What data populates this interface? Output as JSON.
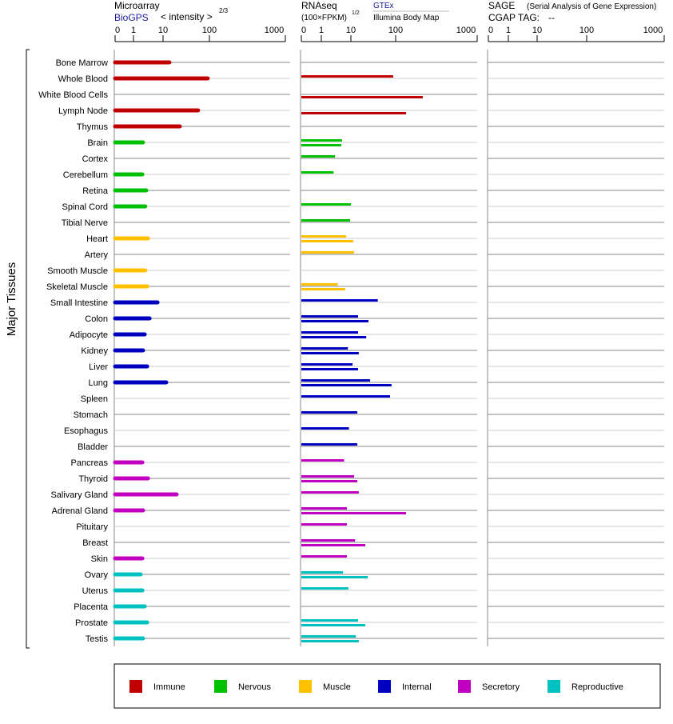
{
  "chart_data": {
    "type": "bar",
    "y_axis_label": "Major Tissues",
    "panels": [
      {
        "title": "Microarray",
        "source": "BioGPS",
        "scale_label": "< intensity >",
        "scale_exponent": "2/3",
        "ticks": [
          "0",
          "1",
          "10",
          "100",
          "1000"
        ]
      },
      {
        "title": "RNAseq",
        "scale_label": "(100×FPKM)",
        "scale_exponent": "1/2",
        "source_upper": "GTEx",
        "source_lower": "Illumina Body Map",
        "ticks": [
          "0",
          "1",
          "10",
          "100",
          "1000"
        ]
      },
      {
        "title": "SAGE",
        "subtitle": "(Serial Analysis of Gene Expression)",
        "tag_label": "CGAP TAG:",
        "tag_value": "--",
        "ticks": [
          "0",
          "1",
          "10",
          "100",
          "1000"
        ]
      }
    ],
    "categories": [
      "Immune",
      "Nervous",
      "Muscle",
      "Internal",
      "Secretory",
      "Reproductive"
    ],
    "category_colors": {
      "Immune": "#c00000",
      "Nervous": "#00c000",
      "Muscle": "#ffc000",
      "Internal": "#0000c0",
      "Secretory": "#c000c0",
      "Reproductive": "#00c0c0"
    },
    "tissues": [
      {
        "name": "Bone Marrow",
        "cat": "Immune",
        "microarray": 13.7,
        "gtex": null,
        "illumina": null
      },
      {
        "name": "Whole Blood",
        "cat": "Immune",
        "microarray": 92,
        "gtex": 88,
        "illumina": null
      },
      {
        "name": "White Blood Cells",
        "cat": "Immune",
        "microarray": null,
        "gtex": null,
        "illumina": 215
      },
      {
        "name": "Lymph Node",
        "cat": "Immune",
        "microarray": 57,
        "gtex": null,
        "illumina": 134
      },
      {
        "name": "Thymus",
        "cat": "Immune",
        "microarray": 23,
        "gtex": null,
        "illumina": null
      },
      {
        "name": "Brain",
        "cat": "Nervous",
        "microarray": 2.1,
        "gtex": 5.0,
        "illumina": 4.7
      },
      {
        "name": "Cortex",
        "cat": "Nervous",
        "microarray": null,
        "gtex": 2.9,
        "illumina": null
      },
      {
        "name": "Cerebellum",
        "cat": "Nervous",
        "microarray": 2.0,
        "gtex": 2.6,
        "illumina": null
      },
      {
        "name": "Retina",
        "cat": "Nervous",
        "microarray": 2.7,
        "gtex": null,
        "illumina": null
      },
      {
        "name": "Spinal Cord",
        "cat": "Nervous",
        "microarray": 2.5,
        "gtex": 10,
        "illumina": null
      },
      {
        "name": "Tibial Nerve",
        "cat": "Nervous",
        "microarray": null,
        "gtex": 9.4,
        "illumina": null
      },
      {
        "name": "Heart",
        "cat": "Muscle",
        "microarray": 3.1,
        "gtex": 6.9,
        "illumina": 11.3
      },
      {
        "name": "Artery",
        "cat": "Muscle",
        "microarray": null,
        "gtex": 11.8,
        "illumina": null
      },
      {
        "name": "Smooth Muscle",
        "cat": "Muscle",
        "microarray": 2.5,
        "gtex": null,
        "illumina": null
      },
      {
        "name": "Skeletal Muscle",
        "cat": "Muscle",
        "microarray": 2.9,
        "gtex": 3.6,
        "illumina": 6.4
      },
      {
        "name": "Small Intestine",
        "cat": "Internal",
        "microarray": 6.5,
        "gtex": 40,
        "illumina": null
      },
      {
        "name": "Colon",
        "cat": "Internal",
        "microarray": 3.5,
        "gtex": 14.5,
        "illumina": 24.7
      },
      {
        "name": "Adipocyte",
        "cat": "Internal",
        "microarray": 2.4,
        "gtex": 14.5,
        "illumina": 22
      },
      {
        "name": "Kidney",
        "cat": "Internal",
        "microarray": 2.1,
        "gtex": 7.9,
        "illumina": 15
      },
      {
        "name": "Liver",
        "cat": "Internal",
        "microarray": 2.9,
        "gtex": 10.9,
        "illumina": 14.5
      },
      {
        "name": "Lung",
        "cat": "Internal",
        "microarray": 11.7,
        "gtex": 26.9,
        "illumina": 81
      },
      {
        "name": "Spleen",
        "cat": "Internal",
        "microarray": null,
        "gtex": 75,
        "illumina": null
      },
      {
        "name": "Stomach",
        "cat": "Internal",
        "microarray": null,
        "gtex": 13.9,
        "illumina": null
      },
      {
        "name": "Esophagus",
        "cat": "Internal",
        "microarray": null,
        "gtex": 8.6,
        "illumina": null
      },
      {
        "name": "Bladder",
        "cat": "Internal",
        "microarray": null,
        "gtex": 13.9,
        "illumina": null
      },
      {
        "name": "Pancreas",
        "cat": "Secretory",
        "microarray": 2.0,
        "gtex": 5.9,
        "illumina": null
      },
      {
        "name": "Thyroid",
        "cat": "Secretory",
        "microarray": 3.1,
        "gtex": 11.8,
        "illumina": 13.9
      },
      {
        "name": "Salivary Gland",
        "cat": "Secretory",
        "microarray": 19.6,
        "gtex": 15,
        "illumina": null
      },
      {
        "name": "Adrenal Gland",
        "cat": "Secretory",
        "microarray": 2.1,
        "gtex": 7.3,
        "illumina": 134
      },
      {
        "name": "Pituitary",
        "cat": "Secretory",
        "microarray": null,
        "gtex": 7.3,
        "illumina": null
      },
      {
        "name": "Breast",
        "cat": "Secretory",
        "microarray": null,
        "gtex": 12.4,
        "illumina": 21
      },
      {
        "name": "Skin",
        "cat": "Secretory",
        "microarray": 2.0,
        "gtex": 7.3,
        "illumina": null
      },
      {
        "name": "Ovary",
        "cat": "Reproductive",
        "microarray": 1.75,
        "gtex": 5.4,
        "illumina": 23.8
      },
      {
        "name": "Uterus",
        "cat": "Reproductive",
        "microarray": 2.0,
        "gtex": 8.2,
        "illumina": null
      },
      {
        "name": "Placenta",
        "cat": "Reproductive",
        "microarray": 2.4,
        "gtex": null,
        "illumina": null
      },
      {
        "name": "Prostate",
        "cat": "Reproductive",
        "microarray": 2.9,
        "gtex": 14.5,
        "illumina": 21
      },
      {
        "name": "Testis",
        "cat": "Reproductive",
        "microarray": 2.1,
        "gtex": 12.9,
        "illumina": 15
      }
    ],
    "sage": [],
    "legend_placement": "bottom"
  }
}
